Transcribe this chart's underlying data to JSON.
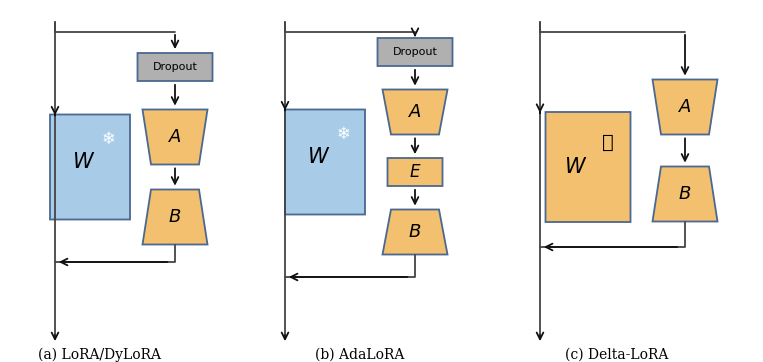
{
  "bg_color": "#ffffff",
  "orange_fill": "#f5c518",
  "orange_fill2": "#f0c060",
  "blue_fill": "#a8c8e8",
  "blue_edge": "#5577aa",
  "orange_edge": "#5577aa",
  "dropout_fill": "#b8b8b8",
  "dropout_edge": "#5577aa",
  "arrow_color": "#222222",
  "line_color": "#444444",
  "label_a": "(a) LoRA/DyLoRA",
  "label_b": "(b) AdaLoRA",
  "label_c": "(c) Delta-LoRA"
}
